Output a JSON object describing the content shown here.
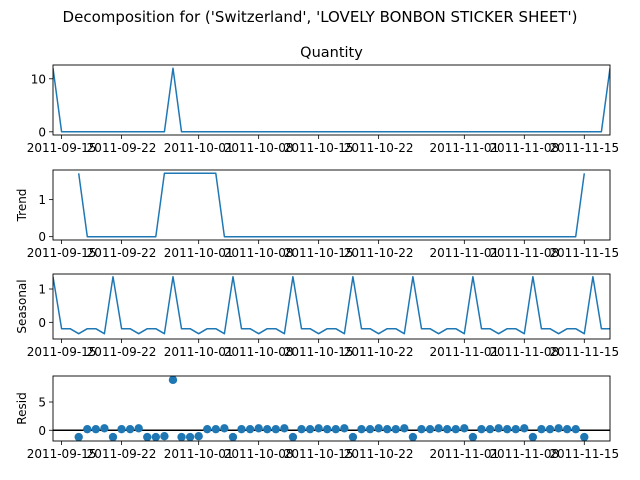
{
  "suptitle": "Decomposition for ('Switzerland', 'LOVELY BONBON STICKER SHEET')",
  "colors": {
    "line": "#1f77b4",
    "marker": "#1f77b4",
    "zero_line": "#000000",
    "frame": "#000000"
  },
  "x_ticks": [
    "2011-09-15",
    "2011-09-22",
    "2011-10-01",
    "2011-10-08",
    "2011-10-15",
    "2011-10-22",
    "2011-11-01",
    "2011-11-08",
    "2011-11-15"
  ],
  "chart_data": [
    {
      "type": "line",
      "title": "Quantity",
      "ylabel": "",
      "ylim": [
        -0.6,
        12.6
      ],
      "yticks": [
        0,
        10
      ],
      "x": [
        0,
        1,
        2,
        3,
        4,
        5,
        6,
        7,
        8,
        9,
        10,
        11,
        12,
        13,
        14,
        15,
        16,
        17,
        18,
        19,
        20,
        21,
        22,
        23,
        24,
        25,
        26,
        27,
        28,
        29,
        30,
        31,
        32,
        33,
        34,
        35,
        36,
        37,
        38,
        39,
        40,
        41,
        42,
        43,
        44,
        45,
        46,
        47,
        48,
        49,
        50,
        51,
        52,
        53,
        54,
        55,
        56,
        57,
        58,
        59,
        60,
        61,
        62,
        63,
        64,
        65
      ],
      "values": [
        12,
        0,
        0,
        0,
        0,
        0,
        0,
        0,
        0,
        0,
        0,
        0,
        0,
        0,
        12,
        0,
        0,
        0,
        0,
        0,
        0,
        0,
        0,
        0,
        0,
        0,
        0,
        0,
        0,
        0,
        0,
        0,
        0,
        0,
        0,
        0,
        0,
        0,
        0,
        0,
        0,
        0,
        0,
        0,
        0,
        0,
        0,
        0,
        0,
        0,
        0,
        0,
        0,
        0,
        0,
        0,
        0,
        0,
        0,
        0,
        0,
        0,
        0,
        0,
        0,
        12
      ]
    },
    {
      "type": "line",
      "title": "",
      "ylabel": "Trend",
      "ylim": [
        -0.09,
        1.8
      ],
      "yticks": [
        0,
        1
      ],
      "x": [
        3,
        4,
        5,
        6,
        7,
        8,
        9,
        10,
        11,
        12,
        13,
        14,
        15,
        16,
        17,
        18,
        19,
        20,
        21,
        22,
        23,
        24,
        25,
        26,
        27,
        28,
        29,
        30,
        31,
        32,
        33,
        34,
        35,
        36,
        37,
        38,
        39,
        40,
        41,
        42,
        43,
        44,
        45,
        46,
        47,
        48,
        49,
        50,
        51,
        52,
        53,
        54,
        55,
        56,
        57,
        58,
        59,
        60,
        61,
        62
      ],
      "values": [
        1.71,
        0,
        0,
        0,
        0,
        0,
        0,
        0,
        0,
        0,
        1.71,
        1.71,
        1.71,
        1.71,
        1.71,
        1.71,
        1.71,
        0,
        0,
        0,
        0,
        0,
        0,
        0,
        0,
        0,
        0,
        0,
        0,
        0,
        0,
        0,
        0,
        0,
        0,
        0,
        0,
        0,
        0,
        0,
        0,
        0,
        0,
        0,
        0,
        0,
        0,
        0,
        0,
        0,
        0,
        0,
        0,
        0,
        0,
        0,
        0,
        0,
        0,
        1.71
      ]
    },
    {
      "type": "line",
      "title": "",
      "ylabel": "Seasonal",
      "ylim": [
        -0.5,
        1.45
      ],
      "yticks": [
        0,
        1
      ],
      "x": [
        0,
        1,
        2,
        3,
        4,
        5,
        6,
        7,
        8,
        9,
        10,
        11,
        12,
        13,
        14,
        15,
        16,
        17,
        18,
        19,
        20,
        21,
        22,
        23,
        24,
        25,
        26,
        27,
        28,
        29,
        30,
        31,
        32,
        33,
        34,
        35,
        36,
        37,
        38,
        39,
        40,
        41,
        42,
        43,
        44,
        45,
        46,
        47,
        48,
        49,
        50,
        51,
        52,
        53,
        54,
        55,
        56,
        57,
        58,
        59,
        60,
        61,
        62,
        63,
        64,
        65
      ],
      "values": [
        1.37,
        -0.19,
        -0.19,
        -0.34,
        -0.19,
        -0.19,
        -0.34,
        1.37,
        -0.19,
        -0.19,
        -0.34,
        -0.19,
        -0.19,
        -0.34,
        1.37,
        -0.19,
        -0.19,
        -0.34,
        -0.19,
        -0.19,
        -0.34,
        1.37,
        -0.19,
        -0.19,
        -0.34,
        -0.19,
        -0.19,
        -0.34,
        1.37,
        -0.19,
        -0.19,
        -0.34,
        -0.19,
        -0.19,
        -0.34,
        1.37,
        -0.19,
        -0.19,
        -0.34,
        -0.19,
        -0.19,
        -0.34,
        1.37,
        -0.19,
        -0.19,
        -0.34,
        -0.19,
        -0.19,
        -0.34,
        1.37,
        -0.19,
        -0.19,
        -0.34,
        -0.19,
        -0.19,
        -0.34,
        1.37,
        -0.19,
        -0.19,
        -0.34,
        -0.19,
        -0.19,
        -0.34,
        1.37,
        -0.19,
        -0.19
      ]
    },
    {
      "type": "scatter",
      "title": "",
      "ylabel": "Resid",
      "ylim": [
        -1.9,
        9.6
      ],
      "yticks": [
        0,
        5
      ],
      "zero_line": 0,
      "x": [
        3,
        4,
        5,
        6,
        7,
        8,
        9,
        10,
        11,
        12,
        13,
        14,
        15,
        16,
        17,
        18,
        19,
        20,
        21,
        22,
        23,
        24,
        25,
        26,
        27,
        28,
        29,
        30,
        31,
        32,
        33,
        34,
        35,
        36,
        37,
        38,
        39,
        40,
        41,
        42,
        43,
        44,
        45,
        46,
        47,
        48,
        49,
        50,
        51,
        52,
        53,
        54,
        55,
        56,
        57,
        58,
        59,
        60,
        61,
        62
      ],
      "values": [
        -1.2,
        0.19,
        0.19,
        0.34,
        -1.2,
        0.19,
        0.19,
        0.34,
        -1.2,
        -1.2,
        -1.05,
        8.92,
        -1.2,
        -1.2,
        -1.05,
        0.19,
        0.19,
        0.34,
        -1.2,
        0.19,
        0.19,
        0.34,
        0.19,
        0.19,
        0.34,
        -1.2,
        0.19,
        0.19,
        0.34,
        0.19,
        0.19,
        0.34,
        -1.2,
        0.19,
        0.19,
        0.34,
        0.19,
        0.19,
        0.34,
        -1.2,
        0.19,
        0.19,
        0.34,
        0.19,
        0.19,
        0.34,
        -1.2,
        0.19,
        0.19,
        0.34,
        0.19,
        0.19,
        0.34,
        -1.2,
        0.19,
        0.19,
        0.34,
        0.19,
        0.19,
        -1.2
      ]
    }
  ]
}
